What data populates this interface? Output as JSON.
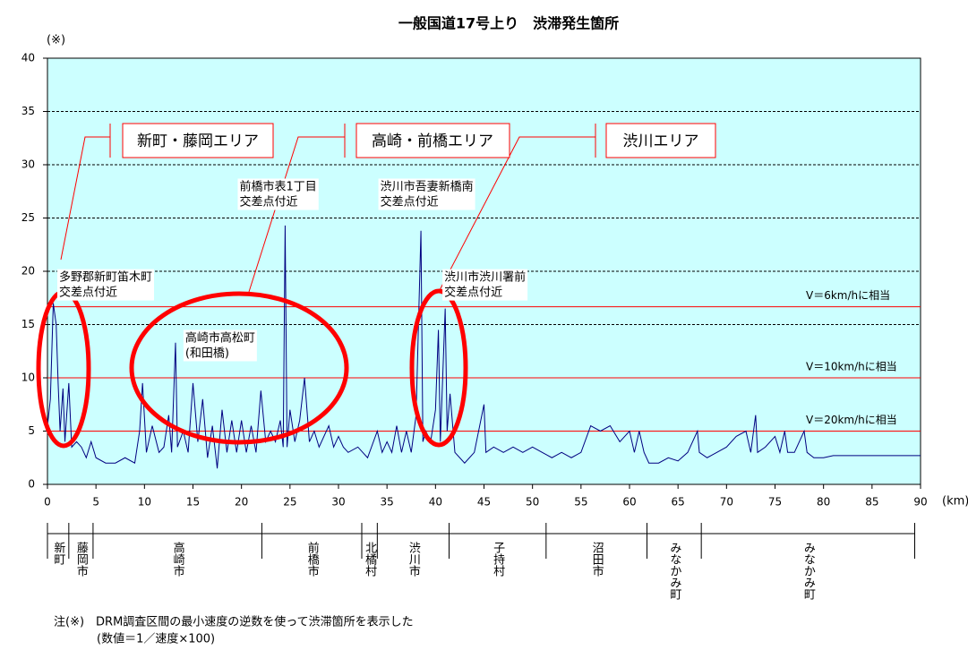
{
  "chart_data": {
    "type": "line",
    "title": "一般国道17号上り　渋滞発生箇所",
    "y_unit": "(※)",
    "x_unit": "(km)",
    "xlim": [
      0,
      90
    ],
    "xticks": [
      0,
      5,
      10,
      15,
      20,
      25,
      30,
      35,
      40,
      45,
      50,
      55,
      60,
      65,
      70,
      75,
      80,
      85,
      90
    ],
    "ylim": [
      0,
      40
    ],
    "yticks": [
      0,
      5,
      10,
      15,
      20,
      25,
      30,
      35,
      40
    ],
    "grid": true,
    "background": "#ccffff",
    "series": [
      {
        "color": "#000080",
        "x": [
          0,
          0.3,
          0.6,
          0.9,
          1.1,
          1.3,
          1.6,
          1.8,
          2.2,
          2.5,
          3.0,
          3.5,
          4.0,
          4.5,
          5,
          6,
          7,
          8,
          9,
          9.5,
          9.8,
          10.2,
          10.8,
          11.5,
          12,
          12.5,
          12.8,
          13.2,
          13.4,
          14,
          14.5,
          15,
          15.5,
          16,
          16.5,
          17,
          17.5,
          18,
          18.5,
          19,
          19.5,
          20,
          20.5,
          21,
          21.5,
          22,
          22.5,
          23,
          23.5,
          24,
          24.3,
          24.5,
          24.7,
          25,
          25.5,
          26,
          26.5,
          27,
          27.5,
          28,
          29,
          29.5,
          30,
          30.5,
          31,
          32,
          33,
          34,
          34.5,
          35,
          35.5,
          36,
          36.5,
          37,
          37.5,
          38,
          38.5,
          38.7,
          39,
          39.5,
          40,
          40.3,
          40.5,
          41,
          41.2,
          41.5,
          42,
          43,
          44,
          45,
          45.2,
          46,
          47,
          48,
          49,
          50,
          51,
          52,
          53,
          54,
          55,
          56,
          57,
          58,
          59,
          60,
          60.5,
          61,
          61.5,
          62,
          63,
          64,
          65,
          66,
          67,
          67.2,
          68,
          69,
          70,
          71,
          72,
          72.5,
          73,
          73.2,
          74,
          75,
          75.5,
          76,
          76.3,
          77,
          78,
          78.3,
          79,
          80,
          81,
          85,
          90
        ],
        "values": [
          5.5,
          8,
          17,
          15,
          9.5,
          5,
          9,
          4,
          9.5,
          3.5,
          4,
          3.5,
          2.5,
          4,
          2.5,
          2,
          2,
          2.5,
          2,
          5,
          9.5,
          3,
          5.5,
          3,
          3.5,
          6.5,
          3,
          13.3,
          3.5,
          5,
          3,
          9.5,
          4,
          8,
          2.5,
          5.5,
          1.5,
          7,
          3,
          6,
          3,
          6,
          3,
          5.5,
          3,
          8.8,
          4,
          5,
          4,
          6,
          3.5,
          24.3,
          3.5,
          7,
          4,
          6,
          10,
          4,
          5,
          3.5,
          5.5,
          3.5,
          4.5,
          3.5,
          3,
          3.5,
          2.5,
          5,
          3,
          4,
          3,
          5.5,
          3,
          5,
          3,
          6.5,
          23.8,
          4,
          5,
          4,
          7,
          14.5,
          4,
          16.5,
          5,
          8.5,
          3,
          2,
          3,
          7.5,
          3,
          3.5,
          3,
          3.5,
          3,
          3.5,
          3,
          2.5,
          3,
          2.5,
          3,
          5.5,
          5,
          5.5,
          4,
          5,
          3,
          5,
          3,
          2,
          2,
          2.5,
          2.2,
          3,
          5,
          3,
          2.5,
          3,
          3.5,
          4.5,
          5,
          3,
          6.5,
          3,
          3.5,
          4.5,
          3,
          5,
          3,
          3,
          5,
          3,
          2.5,
          2.5,
          2.7,
          2.7,
          2.7
        ]
      }
    ],
    "reference_lines": [
      {
        "value": 16.67,
        "label": "V＝6km/hに相当"
      },
      {
        "value": 10,
        "label": "V＝10km/hに相当"
      },
      {
        "value": 5,
        "label": "V＝20km/hに相当"
      }
    ],
    "annotations": [
      {
        "x": 1.2,
        "y": 19.4,
        "lines": [
          "多野郡新町笛木町",
          "交差点付近"
        ]
      },
      {
        "x": 14.2,
        "y": 13.7,
        "lines": [
          "高崎市高松町",
          "(和田橋)"
        ]
      },
      {
        "x": 19.8,
        "y": 27.9,
        "lines": [
          "前橋市表1丁目",
          "交差点付近"
        ]
      },
      {
        "x": 34.3,
        "y": 27.9,
        "lines": [
          "渋川市吾妻新橋南",
          "交差点付近"
        ]
      },
      {
        "x": 40.9,
        "y": 19.4,
        "lines": [
          "渋川市渋川署前",
          "交差点付近"
        ]
      }
    ],
    "areas": [
      "新町・藤岡エリア",
      "高崎・前橋エリア",
      "渋川エリア"
    ],
    "municipalities": [
      {
        "name": "新町",
        "start": 0,
        "end": 2.2
      },
      {
        "name": "藤岡市",
        "start": 2.2,
        "end": 4.7
      },
      {
        "name": "高崎市",
        "start": 4.7,
        "end": 22.1
      },
      {
        "name": "前橋市",
        "start": 22.1,
        "end": 32.4
      },
      {
        "name": "北橘村",
        "start": 32.4,
        "end": 34.0
      },
      {
        "name": "渋川市",
        "start": 34.0,
        "end": 41.4
      },
      {
        "name": "子持村",
        "start": 41.4,
        "end": 51.4
      },
      {
        "name": "沼田市",
        "start": 51.4,
        "end": 61.8
      },
      {
        "name": "みなかみ町",
        "start": 61.8,
        "end": 67.4
      },
      {
        "name": "みなかみ町",
        "start": 67.4,
        "end": 89.4
      }
    ],
    "notes": [
      "注(※)　DRM調査区間の最小速度の逆数を使って渋滞箇所を表示した",
      "(数値＝1／速度×100)"
    ]
  }
}
